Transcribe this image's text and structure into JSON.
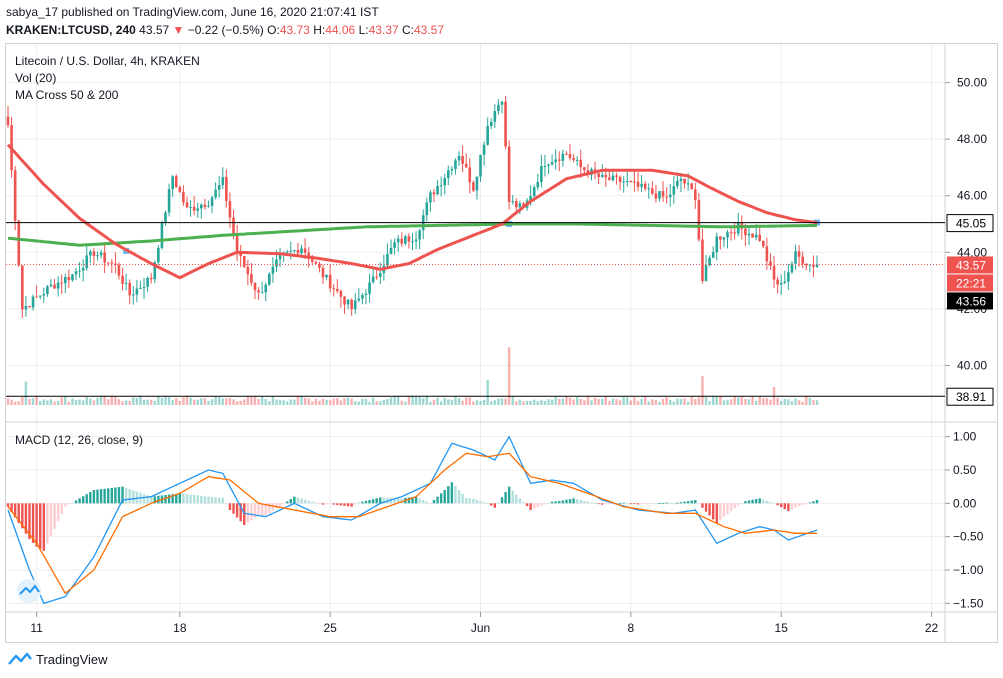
{
  "header": {
    "published_line": "sabya_17 published on TradingView.com, June 16, 2020 21:07:41 IST",
    "symbol": "KRAKEN:LTCUSD, 240",
    "last": "43.57",
    "change_arrow": "▼",
    "change": "−0.22 (−0.5%)",
    "o_label": "O:",
    "o_val": "43.73",
    "h_label": "H:",
    "h_val": "44.06",
    "l_label": "L:",
    "l_val": "43.37",
    "c_label": "C:",
    "c_val": "43.57"
  },
  "legend": {
    "title": "Litecoin / U.S. Dollar, 4h, KRAKEN",
    "vol": "Vol (20)",
    "ma": "MA Cross 50 & 200",
    "macd": "MACD (12, 26, close, 9)"
  },
  "footer": {
    "brand": "TradingView"
  },
  "colors": {
    "up": "#26a69a",
    "down": "#ef5350",
    "ma50": "#ef5350",
    "ma200": "#4caf50",
    "macd_line": "#2196f3",
    "signal_line": "#ff6d00",
    "grid": "#eeeeee"
  },
  "chart_data": {
    "type": "candlestick",
    "price_axis": {
      "ticks": [
        "50.00",
        "48.00",
        "46.00",
        "44.00",
        "42.00",
        "40.00"
      ],
      "ylim": [
        38.6,
        50.8
      ]
    },
    "macd_axis": {
      "ticks": [
        "1.00",
        "0.50",
        "0.00",
        "−0.50",
        "−1.00",
        "−1.50"
      ],
      "ylim": [
        -1.6,
        1.1
      ]
    },
    "x_ticks": [
      "11",
      "18",
      "25",
      "Jun",
      "8",
      "15",
      "22"
    ],
    "horizontal_levels": [
      45.05,
      38.91
    ],
    "price_labels": [
      {
        "text": "45.05",
        "style": "level"
      },
      {
        "text": "43.57",
        "style": "last"
      },
      {
        "text": "22:21",
        "style": "countdown"
      },
      {
        "text": "43.56",
        "style": "dark"
      },
      {
        "text": "38.91",
        "style": "level"
      }
    ],
    "close_anchors": [
      [
        0,
        48.5
      ],
      [
        4,
        42.0
      ],
      [
        12,
        42.8
      ],
      [
        18,
        43.2
      ],
      [
        24,
        44.0
      ],
      [
        30,
        43.5
      ],
      [
        34,
        42.5
      ],
      [
        40,
        43.1
      ],
      [
        46,
        46.7
      ],
      [
        50,
        45.5
      ],
      [
        56,
        45.8
      ],
      [
        60,
        46.5
      ],
      [
        64,
        44.0
      ],
      [
        70,
        42.5
      ],
      [
        76,
        43.8
      ],
      [
        82,
        44.2
      ],
      [
        88,
        43.2
      ],
      [
        92,
        42.6
      ],
      [
        96,
        42.0
      ],
      [
        102,
        43.0
      ],
      [
        108,
        44.3
      ],
      [
        114,
        44.6
      ],
      [
        118,
        46.0
      ],
      [
        122,
        46.7
      ],
      [
        126,
        47.5
      ],
      [
        130,
        46.3
      ],
      [
        134,
        48.5
      ],
      [
        138,
        49.5
      ],
      [
        140,
        45.8
      ],
      [
        144,
        45.5
      ],
      [
        150,
        47.2
      ],
      [
        156,
        47.5
      ],
      [
        160,
        47.0
      ],
      [
        166,
        46.6
      ],
      [
        172,
        46.5
      ],
      [
        178,
        46.2
      ],
      [
        184,
        45.9
      ],
      [
        188,
        46.6
      ],
      [
        192,
        46.0
      ],
      [
        194,
        43.0
      ],
      [
        198,
        44.5
      ],
      [
        204,
        44.9
      ],
      [
        210,
        44.5
      ],
      [
        214,
        43.0
      ],
      [
        216,
        42.8
      ],
      [
        220,
        43.9
      ],
      [
        224,
        43.57
      ]
    ],
    "ma50_anchors": [
      [
        0,
        47.8
      ],
      [
        10,
        46.4
      ],
      [
        20,
        45.2
      ],
      [
        30,
        44.3
      ],
      [
        40,
        43.6
      ],
      [
        48,
        43.1
      ],
      [
        56,
        43.6
      ],
      [
        64,
        44.0
      ],
      [
        76,
        43.95
      ],
      [
        86,
        43.8
      ],
      [
        96,
        43.6
      ],
      [
        104,
        43.4
      ],
      [
        112,
        43.6
      ],
      [
        120,
        44.1
      ],
      [
        130,
        44.6
      ],
      [
        138,
        45.0
      ],
      [
        146,
        45.8
      ],
      [
        156,
        46.6
      ],
      [
        166,
        46.9
      ],
      [
        180,
        46.9
      ],
      [
        190,
        46.7
      ],
      [
        196,
        46.3
      ],
      [
        204,
        45.8
      ],
      [
        212,
        45.4
      ],
      [
        220,
        45.15
      ],
      [
        226,
        45.05
      ]
    ],
    "ma200_anchors": [
      [
        0,
        44.5
      ],
      [
        20,
        44.25
      ],
      [
        40,
        44.4
      ],
      [
        60,
        44.6
      ],
      [
        80,
        44.75
      ],
      [
        100,
        44.9
      ],
      [
        120,
        44.95
      ],
      [
        140,
        45.0
      ],
      [
        160,
        45.0
      ],
      [
        180,
        44.95
      ],
      [
        200,
        44.9
      ],
      [
        226,
        44.95
      ]
    ],
    "volume_spikes": [
      [
        5,
        1.3
      ],
      [
        140,
        3.2
      ],
      [
        134,
        1.4
      ],
      [
        194,
        1.6
      ],
      [
        214,
        1.0
      ]
    ],
    "macd_anchors": [
      [
        0,
        -0.1
      ],
      [
        6,
        -1.0
      ],
      [
        10,
        -1.5
      ],
      [
        16,
        -1.4
      ],
      [
        24,
        -0.8
      ],
      [
        32,
        0.05
      ],
      [
        40,
        0.1
      ],
      [
        48,
        0.3
      ],
      [
        56,
        0.5
      ],
      [
        60,
        0.45
      ],
      [
        66,
        -0.15
      ],
      [
        72,
        -0.2
      ],
      [
        80,
        0.0
      ],
      [
        88,
        -0.2
      ],
      [
        96,
        -0.25
      ],
      [
        104,
        0.0
      ],
      [
        110,
        0.1
      ],
      [
        118,
        0.3
      ],
      [
        124,
        0.9
      ],
      [
        130,
        0.8
      ],
      [
        136,
        0.65
      ],
      [
        140,
        1.0
      ],
      [
        146,
        0.3
      ],
      [
        152,
        0.35
      ],
      [
        158,
        0.3
      ],
      [
        166,
        0.05
      ],
      [
        176,
        -0.1
      ],
      [
        186,
        -0.15
      ],
      [
        192,
        -0.1
      ],
      [
        198,
        -0.6
      ],
      [
        204,
        -0.45
      ],
      [
        210,
        -0.35
      ],
      [
        214,
        -0.4
      ],
      [
        218,
        -0.55
      ],
      [
        226,
        -0.4
      ]
    ],
    "signal_anchors": [
      [
        0,
        -0.05
      ],
      [
        8,
        -0.6
      ],
      [
        16,
        -1.35
      ],
      [
        24,
        -1.0
      ],
      [
        32,
        -0.2
      ],
      [
        40,
        0.0
      ],
      [
        48,
        0.15
      ],
      [
        56,
        0.4
      ],
      [
        62,
        0.35
      ],
      [
        70,
        0.0
      ],
      [
        80,
        -0.1
      ],
      [
        90,
        -0.2
      ],
      [
        98,
        -0.2
      ],
      [
        106,
        -0.05
      ],
      [
        114,
        0.1
      ],
      [
        122,
        0.5
      ],
      [
        128,
        0.75
      ],
      [
        134,
        0.7
      ],
      [
        140,
        0.75
      ],
      [
        146,
        0.4
      ],
      [
        154,
        0.3
      ],
      [
        162,
        0.15
      ],
      [
        172,
        -0.05
      ],
      [
        184,
        -0.15
      ],
      [
        192,
        -0.15
      ],
      [
        200,
        -0.35
      ],
      [
        206,
        -0.45
      ],
      [
        214,
        -0.4
      ],
      [
        220,
        -0.45
      ],
      [
        226,
        -0.45
      ]
    ]
  }
}
